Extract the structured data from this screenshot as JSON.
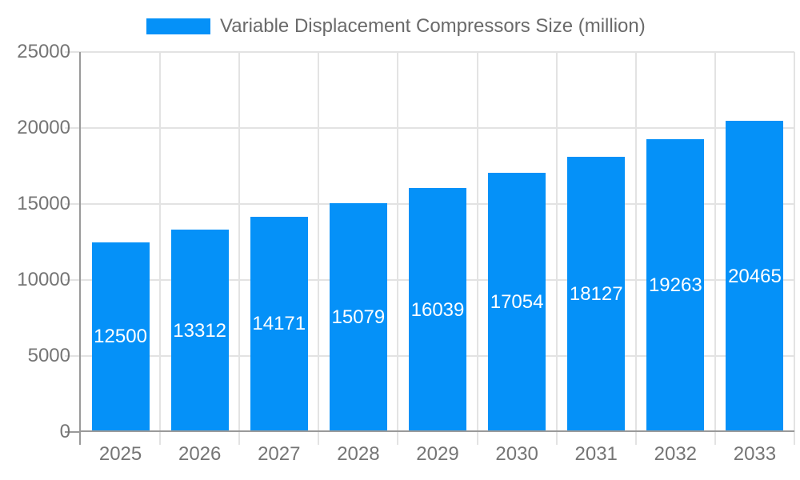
{
  "legend": {
    "label": "Variable Displacement Compressors Size (million)"
  },
  "chart_data": {
    "type": "bar",
    "title": "Variable Displacement Compressors Size (million)",
    "categories": [
      "2025",
      "2026",
      "2027",
      "2028",
      "2029",
      "2030",
      "2031",
      "2032",
      "2033"
    ],
    "values": [
      12500,
      13312,
      14171,
      15079,
      16039,
      17054,
      18127,
      19263,
      20465
    ],
    "xlabel": "",
    "ylabel": "",
    "ylim": [
      0,
      25000
    ],
    "yticks": [
      0,
      5000,
      10000,
      15000,
      20000,
      25000
    ],
    "ytick_labels": [
      "0",
      "5000",
      "10000",
      "15000",
      "20000",
      "25000"
    ],
    "grid": true,
    "legend_position": "top-center",
    "value_labels_shown": true,
    "colors": {
      "bar": "#0591f8",
      "grid": "#e3e3e3",
      "axis": "#9a9a9a",
      "tick_text": "#757575",
      "title_text": "#6a6a6a",
      "value_label_text": "#ffffff",
      "background": "#ffffff"
    }
  }
}
